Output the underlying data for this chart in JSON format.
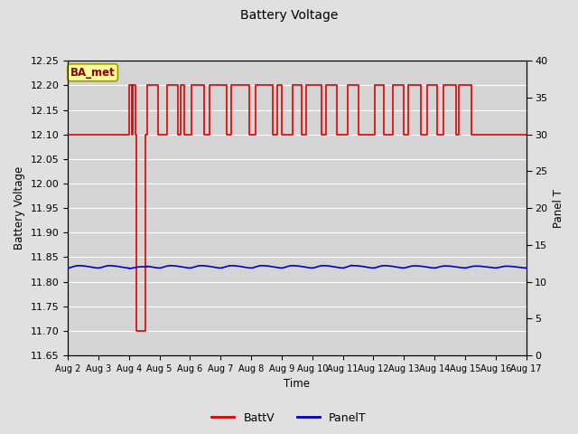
{
  "title": "Battery Voltage",
  "xlabel": "Time",
  "ylabel_left": "Battery Voltage",
  "ylabel_right": "Panel T",
  "xlim_start": 0,
  "xlim_end": 15,
  "ylim_left": [
    11.65,
    12.25
  ],
  "ylim_right": [
    0,
    40
  ],
  "bg_color": "#e0e0e0",
  "plot_bg_color": "#d4d4d4",
  "grid_color": "#ffffff",
  "legend_label_batt": "BattV",
  "legend_label_panel": "PanelT",
  "watermark_text": "BA_met",
  "xtick_labels": [
    "Aug 2",
    "Aug 3",
    "Aug 4",
    "Aug 5",
    "Aug 6",
    "Aug 7",
    "Aug 8",
    "Aug 9",
    "Aug 10",
    "Aug 11",
    "Aug 12",
    "Aug 13",
    "Aug 14",
    "Aug 15",
    "Aug 16",
    "Aug 17"
  ],
  "yticks_left": [
    11.65,
    11.7,
    11.75,
    11.8,
    11.85,
    11.9,
    11.95,
    12.0,
    12.05,
    12.1,
    12.15,
    12.2,
    12.25
  ],
  "yticks_right": [
    0,
    5,
    10,
    15,
    20,
    25,
    30,
    35,
    40
  ],
  "batt_color": "#dd0000",
  "panel_color": "#0000cc",
  "figsize": [
    6.4,
    4.8
  ],
  "dpi": 100
}
